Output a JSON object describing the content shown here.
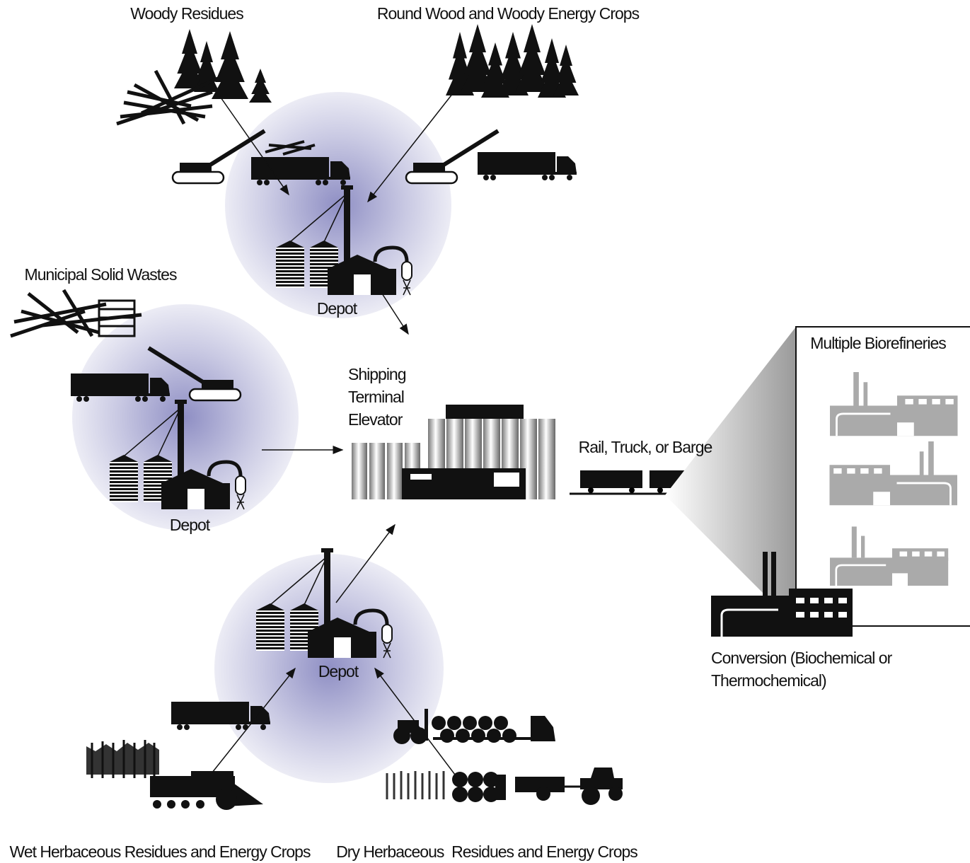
{
  "sources": [
    {
      "label": "Woody Residues"
    },
    {
      "label": "Round Wood and Woody Energy Crops"
    },
    {
      "label": "Municipal Solid Wastes"
    },
    {
      "label": "Wet Herbaceous Residues and Energy Crops"
    },
    {
      "label": "Dry Herbaceous  Residues and Energy Crops"
    }
  ],
  "depots": [
    {
      "label": "Depot"
    },
    {
      "label": "Depot"
    },
    {
      "label": "Depot"
    }
  ],
  "terminal": {
    "lines": [
      "Shipping",
      "Terminal",
      "Elevator"
    ]
  },
  "transport": {
    "label": "Rail, Truck, or Barge"
  },
  "biorefineries": {
    "label": "Multiple Biorefineries"
  },
  "conversion": {
    "lines": [
      "Conversion (Biochemical or",
      "Thermochemical)"
    ]
  }
}
